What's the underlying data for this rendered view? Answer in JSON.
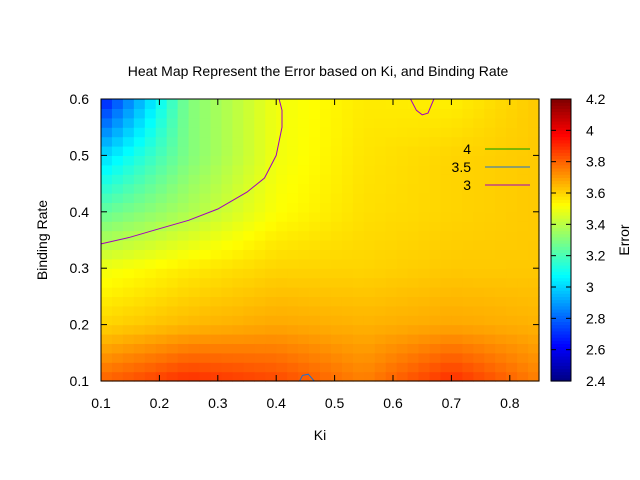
{
  "chart_data": {
    "type": "heatmap",
    "title": "Heat Map Represent the Error based on Ki, and Binding Rate",
    "xlabel": "Ki",
    "ylabel": "Binding Rate",
    "colorbar_label": "Error",
    "xlim": [
      0.1,
      0.85
    ],
    "ylim": [
      0.1,
      0.6
    ],
    "clim": [
      2.4,
      4.2
    ],
    "x_ticks": [
      "0.1",
      "0.2",
      "0.3",
      "0.4",
      "0.5",
      "0.6",
      "0.7",
      "0.8"
    ],
    "y_ticks": [
      "0.1",
      "0.2",
      "0.3",
      "0.4",
      "0.5",
      "0.6"
    ],
    "colorbar_ticks": [
      "2.4",
      "2.6",
      "2.8",
      "3",
      "3.2",
      "3.4",
      "3.6",
      "3.8",
      "4",
      "4.2"
    ],
    "grid": false,
    "legend_position": "top-right",
    "x": [
      0.1,
      0.25,
      0.4,
      0.55,
      0.7,
      0.85
    ],
    "y": [
      0.1,
      0.2,
      0.3,
      0.4,
      0.5,
      0.6
    ],
    "z": [
      [
        3.8,
        3.9,
        3.85,
        3.75,
        3.9,
        3.75
      ],
      [
        3.6,
        3.65,
        3.68,
        3.66,
        3.68,
        3.66
      ],
      [
        3.5,
        3.56,
        3.6,
        3.6,
        3.62,
        3.62
      ],
      [
        3.25,
        3.38,
        3.52,
        3.58,
        3.6,
        3.62
      ],
      [
        3.0,
        3.3,
        3.5,
        3.57,
        3.6,
        3.62
      ],
      [
        2.65,
        3.3,
        3.5,
        3.56,
        3.55,
        3.62
      ]
    ],
    "contours": [
      {
        "level": "4",
        "color": "#00a000",
        "points": []
      },
      {
        "level": "3.5",
        "color": "#1f6fd0",
        "points": [
          [
            0.44,
            0.1
          ],
          [
            0.445,
            0.11
          ],
          [
            0.455,
            0.112
          ],
          [
            0.465,
            0.1
          ]
        ]
      },
      {
        "level": "3",
        "color": "#a000c0",
        "points": [
          [
            0.1,
            0.343
          ],
          [
            0.15,
            0.355
          ],
          [
            0.2,
            0.37
          ],
          [
            0.25,
            0.385
          ],
          [
            0.3,
            0.405
          ],
          [
            0.35,
            0.435
          ],
          [
            0.38,
            0.46
          ],
          [
            0.4,
            0.5
          ],
          [
            0.41,
            0.55
          ],
          [
            0.41,
            0.58
          ],
          [
            0.405,
            0.6
          ]
        ]
      },
      {
        "level": "3",
        "color": "#a000c0",
        "points": [
          [
            0.63,
            0.6
          ],
          [
            0.64,
            0.58
          ],
          [
            0.65,
            0.572
          ],
          [
            0.66,
            0.575
          ],
          [
            0.67,
            0.6
          ]
        ]
      }
    ],
    "legend": [
      {
        "label": "4",
        "color": "#00a000"
      },
      {
        "label": "3.5",
        "color": "#1f6fd0"
      },
      {
        "label": "3",
        "color": "#a000c0"
      }
    ]
  }
}
